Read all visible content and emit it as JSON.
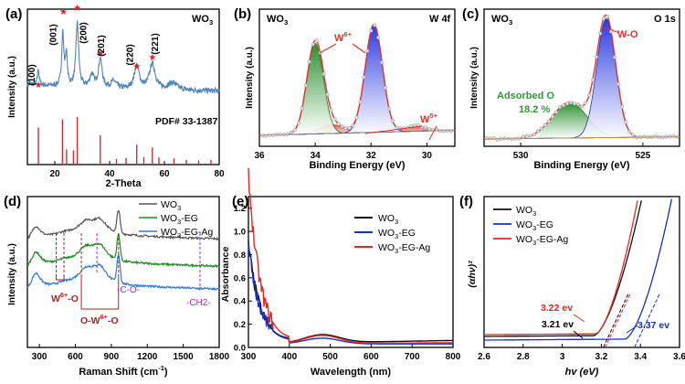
{
  "colors": {
    "xrd": "#4f86b8",
    "stick": "#d03030",
    "star": "#e02020",
    "fit_red": "#e8302b",
    "green_fill": "#2f9a36",
    "blue_fill": "#2a3fd8",
    "purple": "#9932cc",
    "raman_black": "#555555",
    "raman_green": "#1f8a1f",
    "raman_blue": "#2f78d0",
    "uv_black": "#111111",
    "uv_blue": "#1530c8",
    "uv_red": "#ee2222"
  },
  "chart_data": [
    {
      "id": "a",
      "type": "line",
      "panel_label": "(a)",
      "xlabel": "2-Theta",
      "ylabel": "Intensity (a.u.)",
      "xlim": [
        10,
        80
      ],
      "xticks": [
        20,
        40,
        60,
        80
      ],
      "inner_label": "WO3",
      "reference": "PDF# 33-1387",
      "peaks": [
        {
          "label": "(100)",
          "x": 14.0
        },
        {
          "label": "(001)",
          "x": 23.1
        },
        {
          "label": "(200)",
          "x": 28.2
        },
        {
          "label": "(201)",
          "x": 36.6
        },
        {
          "label": "(220)",
          "x": 49.9
        },
        {
          "label": "(221)",
          "x": 55.6
        }
      ],
      "sticks": [
        {
          "x": 14.0,
          "h": 0.78
        },
        {
          "x": 22.8,
          "h": 0.95
        },
        {
          "x": 24.3,
          "h": 0.32
        },
        {
          "x": 26.8,
          "h": 0.3
        },
        {
          "x": 28.2,
          "h": 1.0
        },
        {
          "x": 36.6,
          "h": 0.62
        },
        {
          "x": 42.5,
          "h": 0.12
        },
        {
          "x": 46.0,
          "h": 0.14
        },
        {
          "x": 49.9,
          "h": 0.42
        },
        {
          "x": 52.5,
          "h": 0.16
        },
        {
          "x": 55.6,
          "h": 0.36
        },
        {
          "x": 58.0,
          "h": 0.15
        },
        {
          "x": 63.5,
          "h": 0.13
        },
        {
          "x": 68.0,
          "h": 0.1
        },
        {
          "x": 72.5,
          "h": 0.09
        },
        {
          "x": 77.0,
          "h": 0.1
        }
      ]
    },
    {
      "id": "b",
      "type": "line",
      "panel_label": "(b)",
      "xlabel": "Binding Energy (eV)",
      "ylabel": "Intensity (a.u.)",
      "xlim": [
        36,
        29
      ],
      "xticks": [
        36,
        34,
        32,
        30
      ],
      "inner_label": "WO3",
      "region": "W 4f",
      "annotations": [
        "W6+",
        "W5+"
      ],
      "components": [
        {
          "name": "W6+ 4f5/2",
          "center": 34.0,
          "height": 0.84,
          "width": 0.42
        },
        {
          "name": "W6+ 4f7/2",
          "center": 31.9,
          "height": 1.0,
          "width": 0.44
        },
        {
          "name": "W5+ a",
          "center": 33.4,
          "height": 0.08,
          "width": 0.6
        },
        {
          "name": "W5+ b",
          "center": 30.4,
          "height": 0.05,
          "width": 0.5
        }
      ]
    },
    {
      "id": "c",
      "type": "line",
      "panel_label": "(c)",
      "xlabel": "Binding Energy (eV)",
      "ylabel": "Intensity (a.u.)",
      "xlim": [
        531.5,
        523.5
      ],
      "xticks": [
        530,
        525
      ],
      "inner_label": "WO3",
      "region": "O 1s",
      "annotations": [
        "W-O",
        "Adsorbed O",
        "18.2 %"
      ],
      "components": [
        {
          "name": "W-O",
          "center": 526.5,
          "height": 1.0,
          "width": 0.55
        },
        {
          "name": "Adsorbed O",
          "center": 528.0,
          "height": 0.3,
          "width": 1.0
        }
      ]
    },
    {
      "id": "d",
      "type": "line",
      "panel_label": "(d)",
      "xlabel": "Raman Shift (cm-1)",
      "ylabel": "Intensity (a.u.)",
      "xlim": [
        200,
        1800
      ],
      "xticks": [
        300,
        600,
        900,
        1200,
        1500,
        1800
      ],
      "legend": [
        "WO3",
        "WO3-EG",
        "WO3-EG-Ag"
      ],
      "annotations": [
        "W6+-O",
        "O-W6+-O",
        "-C-O-",
        "-CH2-"
      ]
    },
    {
      "id": "e",
      "type": "line",
      "panel_label": "(e)",
      "xlabel": "Wavelength (nm)",
      "ylabel": "Absorbance",
      "xlim": [
        300,
        800
      ],
      "ylim": [
        0.0,
        1.3
      ],
      "xticks": [
        300,
        400,
        500,
        600,
        700,
        800
      ],
      "yticks": [
        0.0,
        0.2,
        0.4,
        0.6,
        0.8,
        1.0,
        1.2
      ],
      "legend": [
        "WO3",
        "WO3-EG",
        "WO3-EG-Ag"
      ]
    },
    {
      "id": "f",
      "type": "line",
      "panel_label": "(f)",
      "xlabel": "hv (eV)",
      "ylabel": "(αhν)²",
      "xlim": [
        2.6,
        3.6
      ],
      "xticks": [
        2.6,
        2.8,
        3.0,
        3.2,
        3.4,
        3.6
      ],
      "legend": [
        "WO3",
        "WO3-EG",
        "WO3-EG-Ag"
      ],
      "band_gaps": [
        {
          "label": "3.21 ev",
          "value": 3.21
        },
        {
          "label": "3.22 ev",
          "value": 3.22
        },
        {
          "label": "3.37 ev",
          "value": 3.37
        }
      ]
    }
  ]
}
